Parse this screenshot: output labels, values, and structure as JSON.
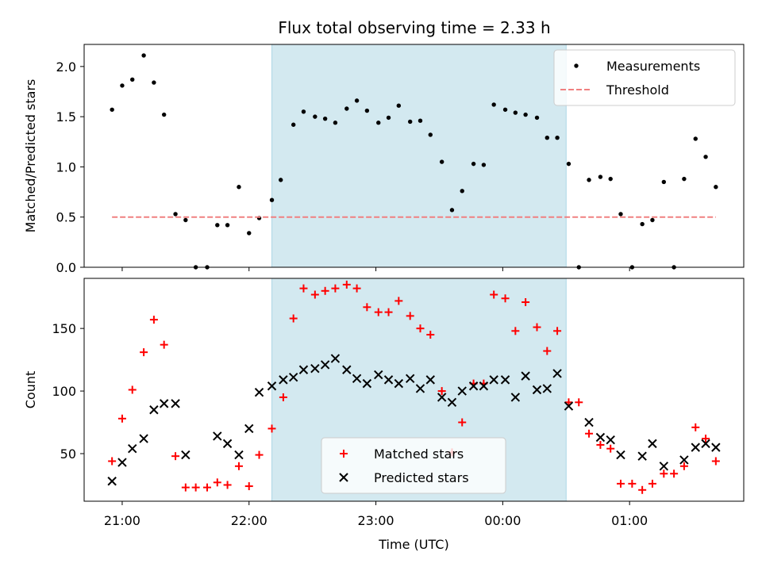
{
  "title": "Flux total observing time = 2.33 h",
  "chart_data": [
    {
      "type": "scatter",
      "ylabel": "Matched/Predicted stars",
      "xlabel": "",
      "ylim": [
        0,
        2.22
      ],
      "yticks": [
        0.0,
        0.5,
        1.0,
        1.5,
        2.0
      ],
      "ytick_labels": [
        "0.0",
        "0.5",
        "1.0",
        "1.5",
        "2.0"
      ],
      "legend_position": "top-right",
      "shaded_span_hours": [
        22.18,
        24.5
      ],
      "shade_color": "#d3e9f0",
      "series": [
        {
          "name": "Measurements",
          "color": "#000000",
          "marker": "dot",
          "x": [
            20.92,
            21.0,
            21.08,
            21.17,
            21.25,
            21.33,
            21.42,
            21.5,
            21.58,
            21.67,
            21.75,
            21.83,
            21.92,
            22.0,
            22.08,
            22.18,
            22.25,
            22.35,
            22.43,
            22.52,
            22.6,
            22.68,
            22.77,
            22.85,
            22.93,
            23.02,
            23.1,
            23.18,
            23.27,
            23.35,
            23.43,
            23.52,
            23.6,
            23.68,
            23.77,
            23.85,
            23.93,
            24.02,
            24.1,
            24.18,
            24.27,
            24.35,
            24.43,
            24.52,
            24.6,
            24.68,
            24.77,
            24.85,
            24.93,
            25.02,
            25.1,
            25.18,
            25.27,
            25.35,
            25.43,
            25.52,
            25.6,
            25.68
          ],
          "y": [
            1.57,
            1.81,
            1.87,
            2.11,
            1.84,
            1.52,
            0.53,
            0.47,
            0.0,
            0.0,
            0.42,
            0.42,
            0.8,
            0.34,
            0.49,
            0.67,
            0.87,
            1.42,
            1.55,
            1.5,
            1.48,
            1.44,
            1.58,
            1.66,
            1.56,
            1.44,
            1.49,
            1.61,
            1.45,
            1.46,
            1.32,
            1.05,
            0.57,
            0.76,
            1.03,
            1.02,
            1.62,
            1.57,
            1.54,
            1.52,
            1.49,
            1.29,
            1.29,
            1.03,
            0.0,
            0.87,
            0.9,
            0.88,
            0.53,
            0.0,
            0.43,
            0.47,
            0.85,
            0.0,
            0.88,
            1.28,
            1.1,
            0.8
          ]
        },
        {
          "name": "Threshold",
          "color": "#f08080",
          "line": "dashed",
          "x": [
            20.92,
            25.68
          ],
          "y": [
            0.5,
            0.5
          ]
        }
      ]
    },
    {
      "type": "scatter",
      "ylabel": "Count",
      "xlabel": "Time (UTC)",
      "ylim": [
        12,
        190
      ],
      "yticks": [
        50,
        100,
        150
      ],
      "ytick_labels": [
        "50",
        "100",
        "150"
      ],
      "xlim_hours": [
        20.7,
        25.9
      ],
      "xticks_hours": [
        21,
        22,
        23,
        24,
        25
      ],
      "xtick_labels": [
        "21:00",
        "22:00",
        "23:00",
        "00:00",
        "01:00"
      ],
      "legend_position": "lower-center",
      "shaded_span_hours": [
        22.18,
        24.5
      ],
      "shade_color": "#d3e9f0",
      "series": [
        {
          "name": "Matched stars",
          "color": "#ff0000",
          "marker": "plus",
          "x": [
            20.92,
            21.0,
            21.08,
            21.17,
            21.25,
            21.33,
            21.42,
            21.5,
            21.58,
            21.67,
            21.75,
            21.83,
            21.92,
            22.0,
            22.08,
            22.18,
            22.27,
            22.35,
            22.43,
            22.52,
            22.6,
            22.68,
            22.77,
            22.85,
            22.93,
            23.02,
            23.1,
            23.18,
            23.27,
            23.35,
            23.43,
            23.52,
            23.6,
            23.68,
            23.77,
            23.85,
            23.93,
            24.02,
            24.1,
            24.18,
            24.27,
            24.35,
            24.43,
            24.52,
            24.6,
            24.68,
            24.77,
            24.85,
            24.93,
            25.02,
            25.1,
            25.18,
            25.27,
            25.35,
            25.43,
            25.52,
            25.6,
            25.68
          ],
          "y": [
            44,
            78,
            101,
            131,
            157,
            137,
            48,
            23,
            23,
            23,
            27,
            25,
            40,
            24,
            49,
            70,
            95,
            158,
            182,
            177,
            180,
            182,
            185,
            182,
            167,
            163,
            163,
            172,
            160,
            150,
            145,
            100,
            51,
            75,
            106,
            106,
            177,
            174,
            148,
            171,
            151,
            132,
            148,
            91,
            91,
            66,
            57,
            54,
            26,
            26,
            21,
            26,
            34,
            34,
            40,
            71,
            62,
            44
          ]
        },
        {
          "name": "Predicted stars",
          "color": "#000000",
          "marker": "x",
          "x": [
            20.92,
            21.0,
            21.08,
            21.17,
            21.25,
            21.33,
            21.42,
            21.5,
            21.58,
            21.67,
            21.75,
            21.83,
            21.92,
            22.0,
            22.08,
            22.18,
            22.27,
            22.35,
            22.43,
            22.52,
            22.6,
            22.68,
            22.77,
            22.85,
            22.93,
            23.02,
            23.1,
            23.18,
            23.27,
            23.35,
            23.43,
            23.52,
            23.6,
            23.68,
            23.77,
            23.85,
            23.93,
            24.02,
            24.1,
            24.18,
            24.27,
            24.35,
            24.43,
            24.52,
            24.6,
            24.68,
            24.77,
            24.85,
            24.93,
            25.02,
            25.1,
            25.18,
            25.27,
            25.35,
            25.43,
            25.52,
            25.6,
            25.68
          ],
          "y": [
            28,
            43,
            54,
            62,
            85,
            90,
            90,
            49,
            null,
            null,
            64,
            58,
            49,
            70,
            99,
            104,
            109,
            111,
            117,
            118,
            121,
            126,
            117,
            110,
            106,
            113,
            109,
            106,
            110,
            102,
            109,
            95,
            91,
            100,
            104,
            104,
            109,
            109,
            95,
            112,
            101,
            102,
            114,
            88,
            null,
            75,
            63,
            61,
            49,
            null,
            48,
            58,
            40,
            null,
            45,
            55,
            58,
            55
          ]
        }
      ]
    }
  ]
}
